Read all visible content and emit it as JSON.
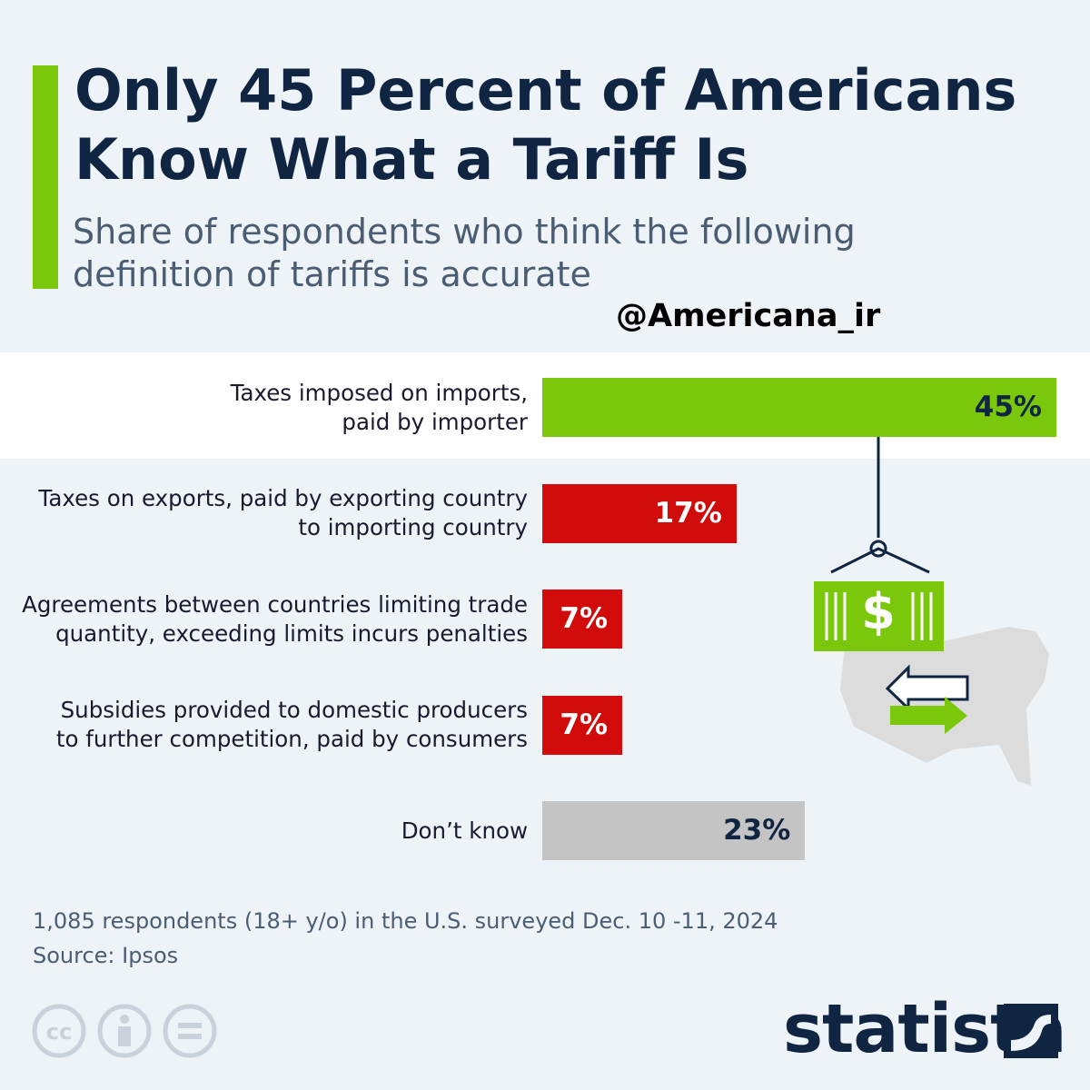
{
  "chart_data": {
    "type": "bar",
    "orientation": "horizontal",
    "title": "Only 45 Percent of Americans\nKnow What a Tariff Is",
    "subtitle": "Share of respondents who think the following\ndefinition of tariffs is accurate",
    "watermark": "@Americana_ir",
    "categories": [
      "Taxes imposed on imports,\npaid by importer",
      "Taxes on exports, paid by exporting country\nto importing country",
      "Agreements between countries limiting trade\nquantity, exceeding limits incurs penalties",
      "Subsidies provided to domestic producers\nto further competition, paid by consumers",
      "Don’t know"
    ],
    "values": [
      45,
      17,
      7,
      7,
      23
    ],
    "value_labels": [
      "45%",
      "17%",
      "7%",
      "7%",
      "23%"
    ],
    "colors": [
      "#7ac70c",
      "#d10a0a",
      "#d10a0a",
      "#d10a0a",
      "#c4c4c4"
    ],
    "label_colors": [
      "#0f2541",
      "#ffffff",
      "#ffffff",
      "#ffffff",
      "#0f2541"
    ],
    "note": "1,085 respondents (18+ y/o) in the U.S. surveyed Dec. 10 -11, 2024",
    "source": "Source: Ipsos",
    "brand": "statista"
  }
}
